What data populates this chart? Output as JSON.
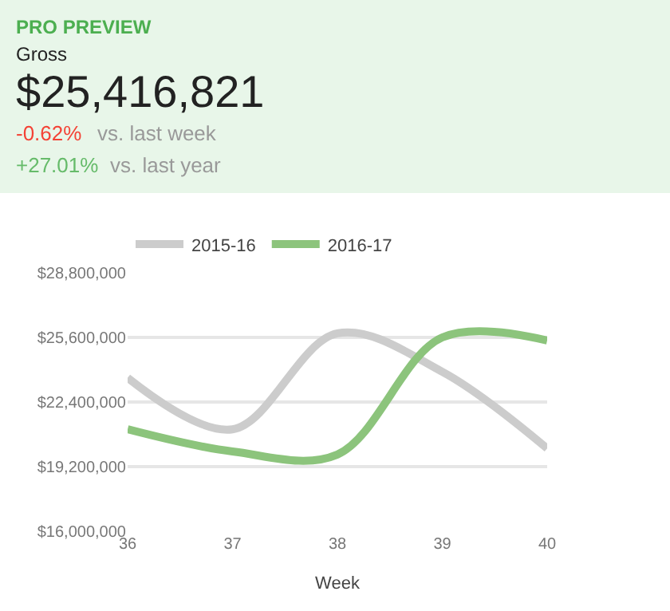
{
  "chart_data": {
    "type": "line",
    "xlabel": "Week",
    "annotations": [
      "PRO PREVIEW",
      "Gross",
      "$25,416,821",
      "-0.62%",
      "vs. last week",
      "+27.01%",
      "vs. last year"
    ],
    "x": [
      36,
      37,
      38,
      39,
      40
    ],
    "series": [
      {
        "name": "2015-16",
        "color": "#cccccc",
        "values": [
          23600000,
          21050000,
          25800000,
          23900000,
          20100000
        ]
      },
      {
        "name": "2016-17",
        "color": "#8cc47c",
        "values": [
          21050000,
          19950000,
          19800000,
          25600000,
          25450000
        ]
      }
    ],
    "xlim": [
      36,
      40
    ],
    "xticks": [
      36,
      37,
      38,
      39,
      40
    ],
    "ylim": [
      16000000,
      28800000
    ],
    "yticks": [
      {
        "value": 16000000,
        "label": "$16,000,000"
      },
      {
        "value": 19200000,
        "label": "$19,200,000"
      },
      {
        "value": 22400000,
        "label": "$22,400,000"
      },
      {
        "value": 25600000,
        "label": "$25,600,000"
      },
      {
        "value": 28800000,
        "label": "$28,800,000"
      }
    ],
    "grid": "y",
    "legend": "top left",
    "marker": "none",
    "line_style": "solid"
  }
}
